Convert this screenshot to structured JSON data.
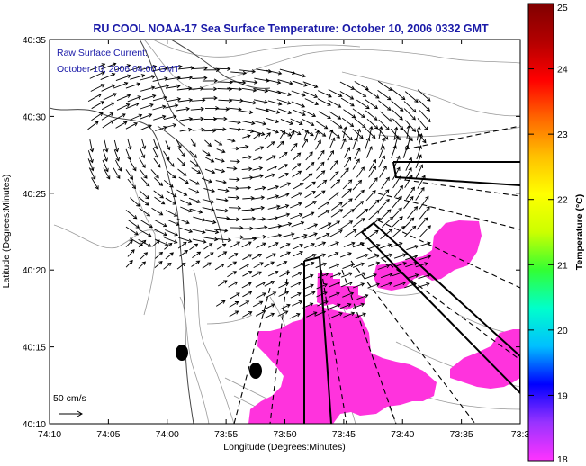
{
  "title": "RU COOL  NOAA-17  Sea Surface Temperature:  October 10, 2006 0332 GMT",
  "annotation": {
    "line1": "Raw Surface Current:",
    "line2": "October 10, 2006 04:00 GMT"
  },
  "scale_label": "50 cm/s",
  "x_axis": {
    "label": "Longitude (Degrees:Minutes)",
    "ticks": [
      "74:10",
      "74:05",
      "74:00",
      "73:55",
      "73:50",
      "73:45",
      "73:40",
      "73:35",
      "73:3"
    ]
  },
  "y_axis": {
    "label": "Latitude (Degrees:Minutes)",
    "ticks": [
      "40:35",
      "40:30",
      "40:25",
      "40:20",
      "40:15",
      "40:10"
    ]
  },
  "colorbar": {
    "label": "Temperature (°C)",
    "ticks": [
      "25",
      "24",
      "23",
      "22",
      "21",
      "20",
      "19",
      "18"
    ],
    "range": [
      18,
      25
    ],
    "stops": [
      "#ff33ff",
      "#9933ff",
      "#0000ff",
      "#00bfff",
      "#00ffcc",
      "#33ff33",
      "#ccff00",
      "#ffff00",
      "#ffbf00",
      "#ff6600",
      "#ff0000",
      "#b30000",
      "#800000"
    ]
  },
  "colors": {
    "sst_patch": "#ff33dd",
    "vectors": "#000000",
    "bathymetry": "#9a9a9a"
  },
  "legend_icons": [
    "land-sst-patch",
    "current-vector-field"
  ]
}
